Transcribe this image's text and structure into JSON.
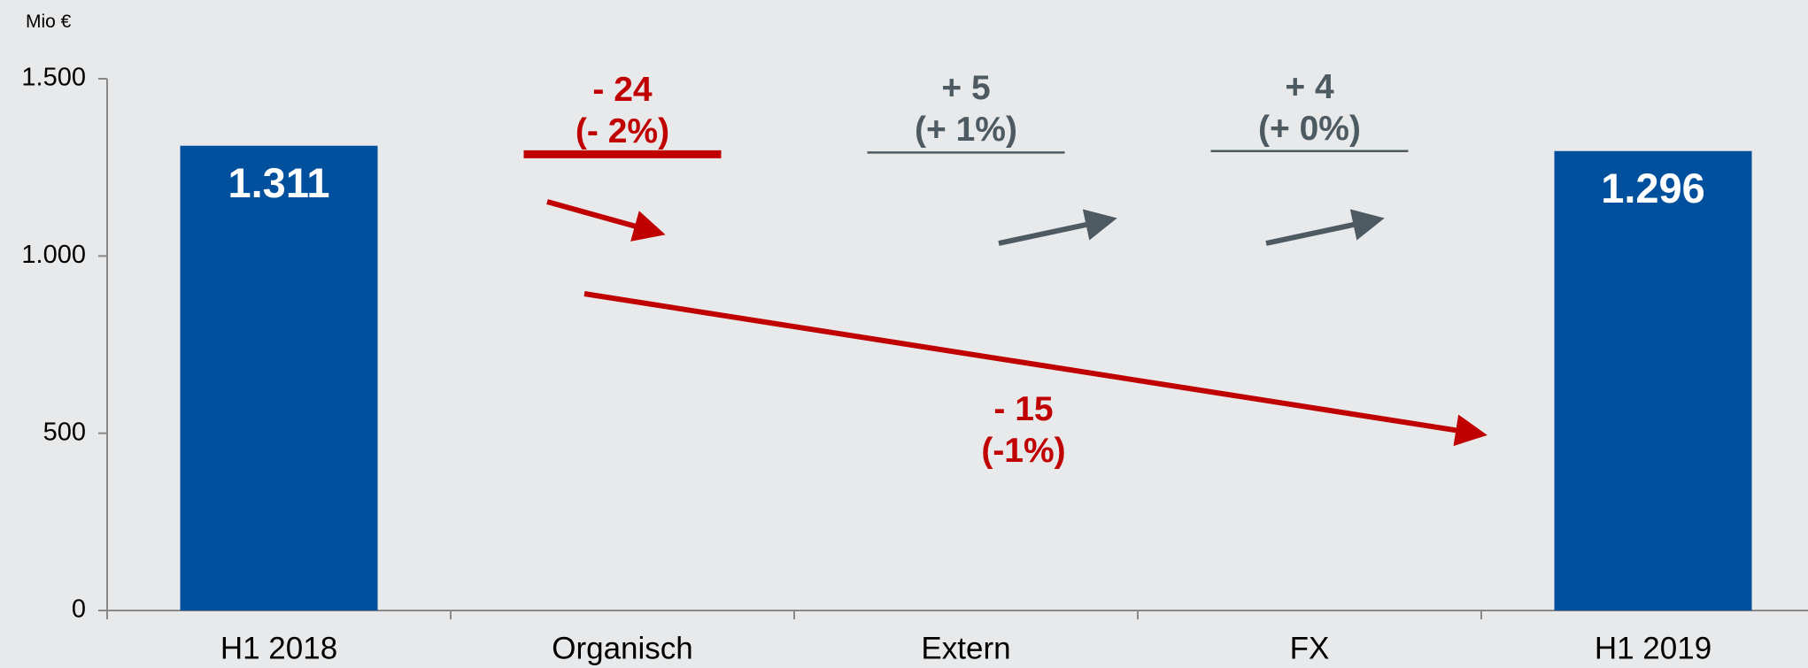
{
  "chart_data": {
    "type": "waterfall",
    "y_axis_label": "Mio €",
    "categories": [
      "H1 2018",
      "Organisch",
      "Extern",
      "FX",
      "H1 2019"
    ],
    "values": [
      1311,
      -24,
      5,
      4,
      1296
    ],
    "value_labels": [
      "1.311",
      "- 24\n(- 2%)",
      "+ 5\n(+ 1%)",
      "+ 4\n(+ 0%)",
      "1.296"
    ],
    "total_indices": [
      0,
      4
    ],
    "annotation": "- 15\n(-1%)",
    "colors": {
      "total": "#00509e",
      "negative": "#c00000",
      "positive": "#4d5a62"
    },
    "ylim": [
      0,
      1500
    ],
    "yticks": [
      0,
      500,
      {
        "value": 1000,
        "label": "1.000"
      },
      {
        "value": 1500,
        "label": "1.500"
      }
    ]
  }
}
